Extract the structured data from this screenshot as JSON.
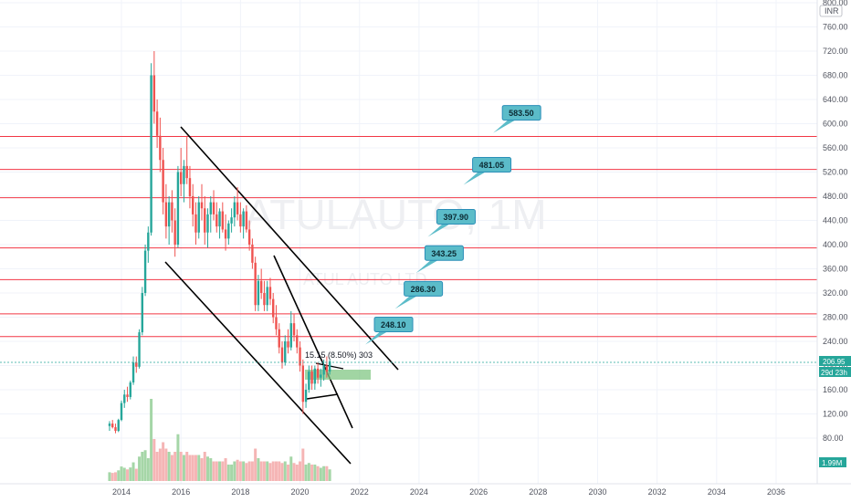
{
  "chart_data": {
    "type": "candlestick",
    "symbol_watermark": "ATULAUTO, 1M",
    "name_watermark": "ATUL AUTO LTD",
    "currency": "INR",
    "y_ticks": [
      "800.00",
      "760.00",
      "720.00",
      "680.00",
      "640.00",
      "600.00",
      "560.00",
      "520.00",
      "480.00",
      "440.00",
      "400.00",
      "360.00",
      "320.00",
      "280.00",
      "240.00",
      "200.00",
      "160.00",
      "120.00",
      "80.00"
    ],
    "x_ticks": [
      "2014",
      "2016",
      "2018",
      "2020",
      "2022",
      "2024",
      "2026",
      "2028",
      "2030",
      "2032",
      "2034",
      "2036"
    ],
    "ylim": [
      40,
      800
    ],
    "xlim": [
      2012.1,
      2038.2
    ],
    "last_price": "206.95",
    "countdown": "29d 23h",
    "volume_label": "1.99M",
    "horizontal_levels": [
      {
        "value": 578.95,
        "label": "578.95"
      },
      {
        "value": 524.3,
        "label": "524.30"
      },
      {
        "value": 477.6,
        "label": "477.60"
      },
      {
        "value": 394.5,
        "label": "394.50"
      },
      {
        "value": 342.1,
        "label": "342.10"
      },
      {
        "value": 285.55,
        "label": "285.55"
      },
      {
        "value": 247.85,
        "label": "247.85"
      }
    ],
    "targets": [
      {
        "label": "248.10",
        "x": 2022.5,
        "y": 268
      },
      {
        "label": "286.30",
        "x": 2023.5,
        "y": 327
      },
      {
        "label": "343.25",
        "x": 2024.2,
        "y": 386
      },
      {
        "label": "397.90",
        "x": 2024.6,
        "y": 446
      },
      {
        "label": "481.05",
        "x": 2025.8,
        "y": 532
      },
      {
        "label": "583.50",
        "x": 2026.8,
        "y": 618
      }
    ],
    "measure_label": "15.15 (8.50%) 303",
    "ohlc": [
      {
        "t": 2013.6,
        "o": 100,
        "h": 108,
        "l": 92,
        "c": 104
      },
      {
        "t": 2013.7,
        "o": 104,
        "h": 110,
        "l": 96,
        "c": 98
      },
      {
        "t": 2013.8,
        "o": 98,
        "h": 104,
        "l": 88,
        "c": 92
      },
      {
        "t": 2013.9,
        "o": 92,
        "h": 112,
        "l": 90,
        "c": 110
      },
      {
        "t": 2014.0,
        "o": 110,
        "h": 142,
        "l": 108,
        "c": 138
      },
      {
        "t": 2014.1,
        "o": 138,
        "h": 160,
        "l": 130,
        "c": 152
      },
      {
        "t": 2014.2,
        "o": 152,
        "h": 165,
        "l": 140,
        "c": 148
      },
      {
        "t": 2014.3,
        "o": 148,
        "h": 175,
        "l": 144,
        "c": 172
      },
      {
        "t": 2014.4,
        "o": 172,
        "h": 215,
        "l": 168,
        "c": 205
      },
      {
        "t": 2014.5,
        "o": 205,
        "h": 215,
        "l": 188,
        "c": 198
      },
      {
        "t": 2014.6,
        "o": 198,
        "h": 260,
        "l": 195,
        "c": 255
      },
      {
        "t": 2014.7,
        "o": 255,
        "h": 330,
        "l": 250,
        "c": 320
      },
      {
        "t": 2014.8,
        "o": 320,
        "h": 400,
        "l": 315,
        "c": 390
      },
      {
        "t": 2014.9,
        "o": 390,
        "h": 430,
        "l": 370,
        "c": 420
      },
      {
        "t": 2015.0,
        "o": 420,
        "h": 700,
        "l": 415,
        "c": 680
      },
      {
        "t": 2015.1,
        "o": 680,
        "h": 720,
        "l": 600,
        "c": 620
      },
      {
        "t": 2015.2,
        "o": 620,
        "h": 640,
        "l": 560,
        "c": 580
      },
      {
        "t": 2015.3,
        "o": 580,
        "h": 610,
        "l": 520,
        "c": 540
      },
      {
        "t": 2015.4,
        "o": 540,
        "h": 560,
        "l": 450,
        "c": 470
      },
      {
        "t": 2015.5,
        "o": 470,
        "h": 500,
        "l": 410,
        "c": 430
      },
      {
        "t": 2015.6,
        "o": 430,
        "h": 480,
        "l": 400,
        "c": 470
      },
      {
        "t": 2015.7,
        "o": 470,
        "h": 490,
        "l": 420,
        "c": 440
      },
      {
        "t": 2015.8,
        "o": 440,
        "h": 460,
        "l": 380,
        "c": 400
      },
      {
        "t": 2015.9,
        "o": 400,
        "h": 530,
        "l": 395,
        "c": 520
      },
      {
        "t": 2016.0,
        "o": 520,
        "h": 560,
        "l": 480,
        "c": 500
      },
      {
        "t": 2016.1,
        "o": 500,
        "h": 540,
        "l": 470,
        "c": 530
      },
      {
        "t": 2016.2,
        "o": 530,
        "h": 580,
        "l": 500,
        "c": 510
      },
      {
        "t": 2016.3,
        "o": 510,
        "h": 530,
        "l": 460,
        "c": 480
      },
      {
        "t": 2016.4,
        "o": 480,
        "h": 500,
        "l": 430,
        "c": 450
      },
      {
        "t": 2016.5,
        "o": 450,
        "h": 470,
        "l": 400,
        "c": 420
      },
      {
        "t": 2016.6,
        "o": 420,
        "h": 480,
        "l": 410,
        "c": 470
      },
      {
        "t": 2016.7,
        "o": 470,
        "h": 500,
        "l": 440,
        "c": 460
      },
      {
        "t": 2016.8,
        "o": 460,
        "h": 480,
        "l": 400,
        "c": 420
      },
      {
        "t": 2016.9,
        "o": 420,
        "h": 460,
        "l": 395,
        "c": 450
      },
      {
        "t": 2017.0,
        "o": 450,
        "h": 480,
        "l": 420,
        "c": 470
      },
      {
        "t": 2017.1,
        "o": 470,
        "h": 490,
        "l": 440,
        "c": 450
      },
      {
        "t": 2017.2,
        "o": 450,
        "h": 470,
        "l": 420,
        "c": 430
      },
      {
        "t": 2017.3,
        "o": 430,
        "h": 460,
        "l": 410,
        "c": 455
      },
      {
        "t": 2017.4,
        "o": 455,
        "h": 470,
        "l": 420,
        "c": 425
      },
      {
        "t": 2017.5,
        "o": 425,
        "h": 450,
        "l": 390,
        "c": 410
      },
      {
        "t": 2017.6,
        "o": 410,
        "h": 440,
        "l": 400,
        "c": 435
      },
      {
        "t": 2017.7,
        "o": 435,
        "h": 460,
        "l": 420,
        "c": 445
      },
      {
        "t": 2017.8,
        "o": 445,
        "h": 480,
        "l": 430,
        "c": 470
      },
      {
        "t": 2017.9,
        "o": 470,
        "h": 495,
        "l": 440,
        "c": 450
      },
      {
        "t": 2018.0,
        "o": 450,
        "h": 470,
        "l": 420,
        "c": 430
      },
      {
        "t": 2018.1,
        "o": 430,
        "h": 460,
        "l": 410,
        "c": 455
      },
      {
        "t": 2018.2,
        "o": 455,
        "h": 465,
        "l": 420,
        "c": 425
      },
      {
        "t": 2018.3,
        "o": 425,
        "h": 440,
        "l": 390,
        "c": 400
      },
      {
        "t": 2018.4,
        "o": 400,
        "h": 410,
        "l": 360,
        "c": 370
      },
      {
        "t": 2018.5,
        "o": 370,
        "h": 380,
        "l": 290,
        "c": 300
      },
      {
        "t": 2018.6,
        "o": 300,
        "h": 350,
        "l": 290,
        "c": 340
      },
      {
        "t": 2018.7,
        "o": 340,
        "h": 360,
        "l": 310,
        "c": 320
      },
      {
        "t": 2018.8,
        "o": 320,
        "h": 340,
        "l": 290,
        "c": 300
      },
      {
        "t": 2018.9,
        "o": 300,
        "h": 340,
        "l": 290,
        "c": 330
      },
      {
        "t": 2019.0,
        "o": 330,
        "h": 345,
        "l": 300,
        "c": 310
      },
      {
        "t": 2019.1,
        "o": 310,
        "h": 320,
        "l": 270,
        "c": 280
      },
      {
        "t": 2019.2,
        "o": 280,
        "h": 300,
        "l": 250,
        "c": 260
      },
      {
        "t": 2019.3,
        "o": 260,
        "h": 270,
        "l": 220,
        "c": 230
      },
      {
        "t": 2019.4,
        "o": 230,
        "h": 240,
        "l": 195,
        "c": 205
      },
      {
        "t": 2019.5,
        "o": 205,
        "h": 250,
        "l": 200,
        "c": 240
      },
      {
        "t": 2019.6,
        "o": 240,
        "h": 260,
        "l": 220,
        "c": 230
      },
      {
        "t": 2019.7,
        "o": 230,
        "h": 290,
        "l": 225,
        "c": 270
      },
      {
        "t": 2019.8,
        "o": 270,
        "h": 285,
        "l": 240,
        "c": 250
      },
      {
        "t": 2019.9,
        "o": 250,
        "h": 260,
        "l": 220,
        "c": 230
      },
      {
        "t": 2020.0,
        "o": 230,
        "h": 240,
        "l": 190,
        "c": 200
      },
      {
        "t": 2020.1,
        "o": 200,
        "h": 210,
        "l": 120,
        "c": 140
      },
      {
        "t": 2020.2,
        "o": 140,
        "h": 170,
        "l": 130,
        "c": 160
      },
      {
        "t": 2020.3,
        "o": 160,
        "h": 200,
        "l": 155,
        "c": 190
      },
      {
        "t": 2020.4,
        "o": 190,
        "h": 200,
        "l": 160,
        "c": 170
      },
      {
        "t": 2020.5,
        "o": 170,
        "h": 200,
        "l": 160,
        "c": 195
      },
      {
        "t": 2020.6,
        "o": 195,
        "h": 205,
        "l": 170,
        "c": 180
      },
      {
        "t": 2020.7,
        "o": 180,
        "h": 195,
        "l": 165,
        "c": 185
      },
      {
        "t": 2020.8,
        "o": 185,
        "h": 210,
        "l": 175,
        "c": 200
      },
      {
        "t": 2020.9,
        "o": 200,
        "h": 215,
        "l": 180,
        "c": 190
      },
      {
        "t": 2021.0,
        "o": 190,
        "h": 210,
        "l": 185,
        "c": 207
      }
    ]
  }
}
